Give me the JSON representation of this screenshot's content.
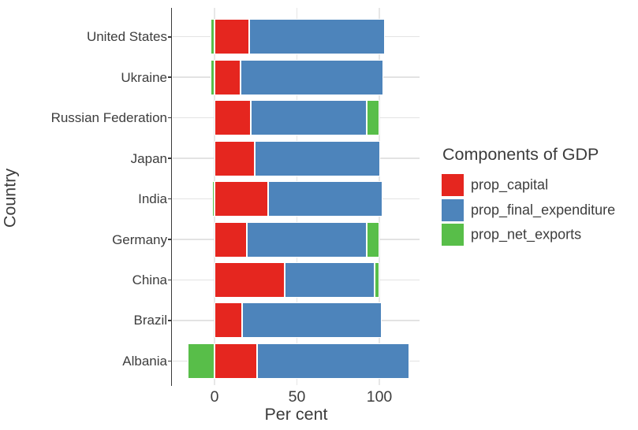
{
  "chart_data": {
    "type": "bar",
    "orientation": "horizontal",
    "stacked": true,
    "title": "",
    "xlabel": "Per cent",
    "ylabel": "Country",
    "legend_title": "Components of GDP",
    "legend_position": "right",
    "grid": true,
    "xlim": [
      -26,
      125
    ],
    "xticks": [
      0,
      50,
      100
    ],
    "xtick_labels": [
      "0",
      "50",
      "100"
    ],
    "categories": [
      "United States",
      "Ukraine",
      "Russian Federation",
      "Japan",
      "India",
      "Germany",
      "China",
      "Brazil",
      "Albania"
    ],
    "series": [
      {
        "name": "prop_capital",
        "color": "#e5261f",
        "values": [
          21.2,
          16.0,
          22.0,
          24.3,
          32.4,
          19.6,
          42.8,
          16.6,
          25.8
        ]
      },
      {
        "name": "prop_final_expenditure",
        "color": "#4d84bb",
        "values": [
          82.0,
          86.6,
          70.3,
          76.2,
          69.4,
          72.7,
          54.3,
          84.6,
          92.5
        ]
      },
      {
        "name": "prop_net_exports",
        "color": "#58be49",
        "values": [
          -2.5,
          -2.3,
          7.7,
          0,
          -1.5,
          7.7,
          2.9,
          0,
          -16.3
        ]
      }
    ],
    "colors": {
      "prop_capital": "#e5261f",
      "prop_final_expenditure": "#4d84bb",
      "prop_net_exports": "#58be49",
      "grid": "#e5e5e5",
      "axis": "#3a3a3a",
      "text": "#3d3d3d",
      "background": "#ffffff"
    }
  }
}
